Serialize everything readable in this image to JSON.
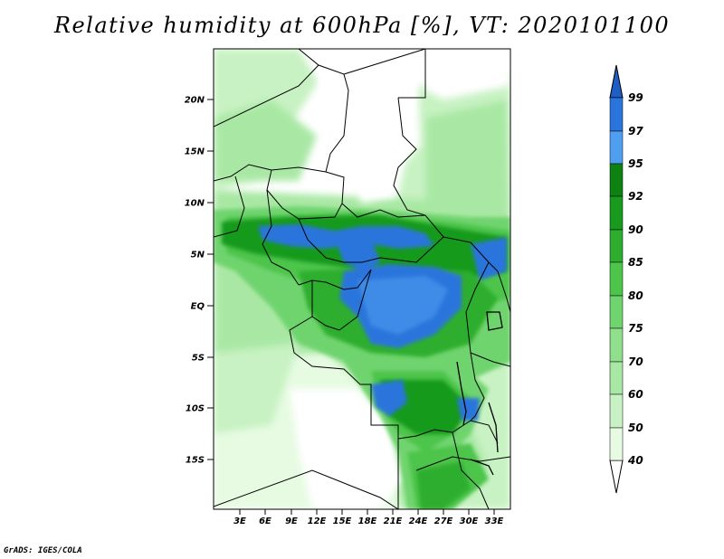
{
  "title": "Relative humidity at 600hPa [%], VT: 2020101100",
  "credit": "GrADS: IGES/COLA",
  "map": {
    "lon_range": [
      0,
      34
    ],
    "lat_range": [
      -20,
      24
    ],
    "lat_ticks": [
      "20N",
      "15N",
      "10N",
      "5N",
      "EQ",
      "5S",
      "10S",
      "15S"
    ],
    "lat_tick_values": [
      20,
      15,
      10,
      5,
      0,
      -5,
      -10,
      -15
    ],
    "lon_ticks": [
      "3E",
      "6E",
      "9E",
      "12E",
      "15E",
      "18E",
      "21E",
      "24E",
      "27E",
      "30E",
      "33E"
    ],
    "lon_tick_values": [
      3,
      6,
      9,
      12,
      15,
      18,
      21,
      24,
      27,
      30,
      33
    ]
  },
  "colorbar": {
    "levels": [
      "40",
      "50",
      "60",
      "70",
      "75",
      "80",
      "85",
      "90",
      "92",
      "95",
      "97",
      "99"
    ],
    "colors": [
      "#ffffff",
      "#e6fbe2",
      "#c8f2c3",
      "#a9e8a4",
      "#8fdf8d",
      "#6fd46e",
      "#4dc54b",
      "#2eae2f",
      "#179a1d",
      "#0e8113",
      "#4f9ff0",
      "#2a75dc",
      "#1f5fc5"
    ],
    "arrows": true
  }
}
